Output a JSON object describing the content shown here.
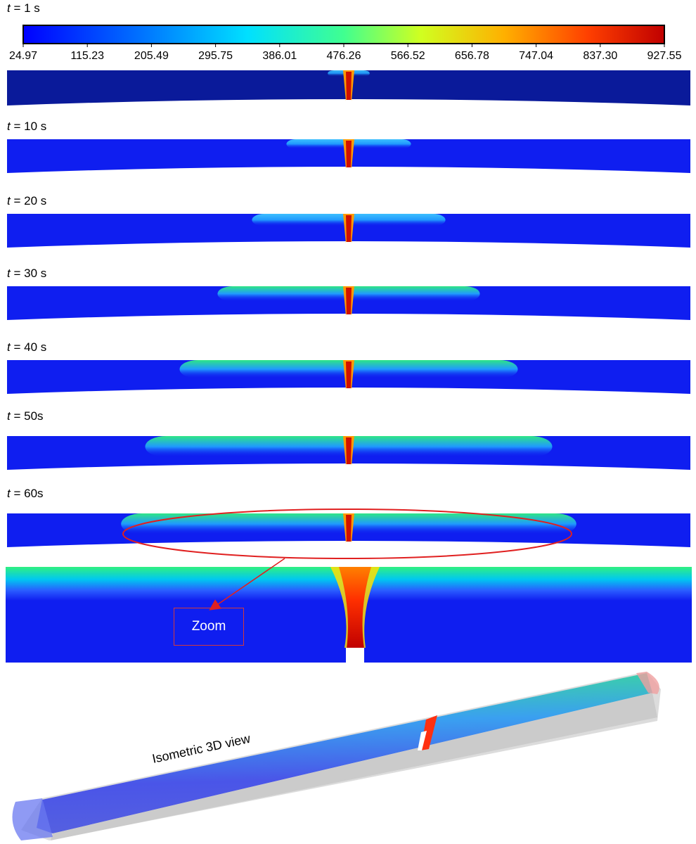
{
  "colorbar": {
    "ticks": [
      "24.97",
      "115.23",
      "205.49",
      "295.75",
      "386.01",
      "476.26",
      "566.52",
      "656.78",
      "747.04",
      "837.30",
      "927.55"
    ]
  },
  "frames": [
    {
      "var": "t",
      "rest": " = 1 s",
      "spread": 0.02
    },
    {
      "var": "t",
      "rest": " = 10 s",
      "spread": 0.14
    },
    {
      "var": "t",
      "rest": " = 20 s",
      "spread": 0.24
    },
    {
      "var": "t",
      "rest": " = 30 s",
      "spread": 0.34
    },
    {
      "var": "t",
      "rest": " = 40 s",
      "spread": 0.45
    },
    {
      "var": "t",
      "rest": " = 50s",
      "spread": 0.55
    },
    {
      "var": "t",
      "rest": " = 60s",
      "spread": 0.62
    }
  ],
  "zoom": {
    "label": "Zoom"
  },
  "iso": {
    "label": "Isometric 3D view"
  },
  "colors": {
    "highlight": "#e02020"
  }
}
